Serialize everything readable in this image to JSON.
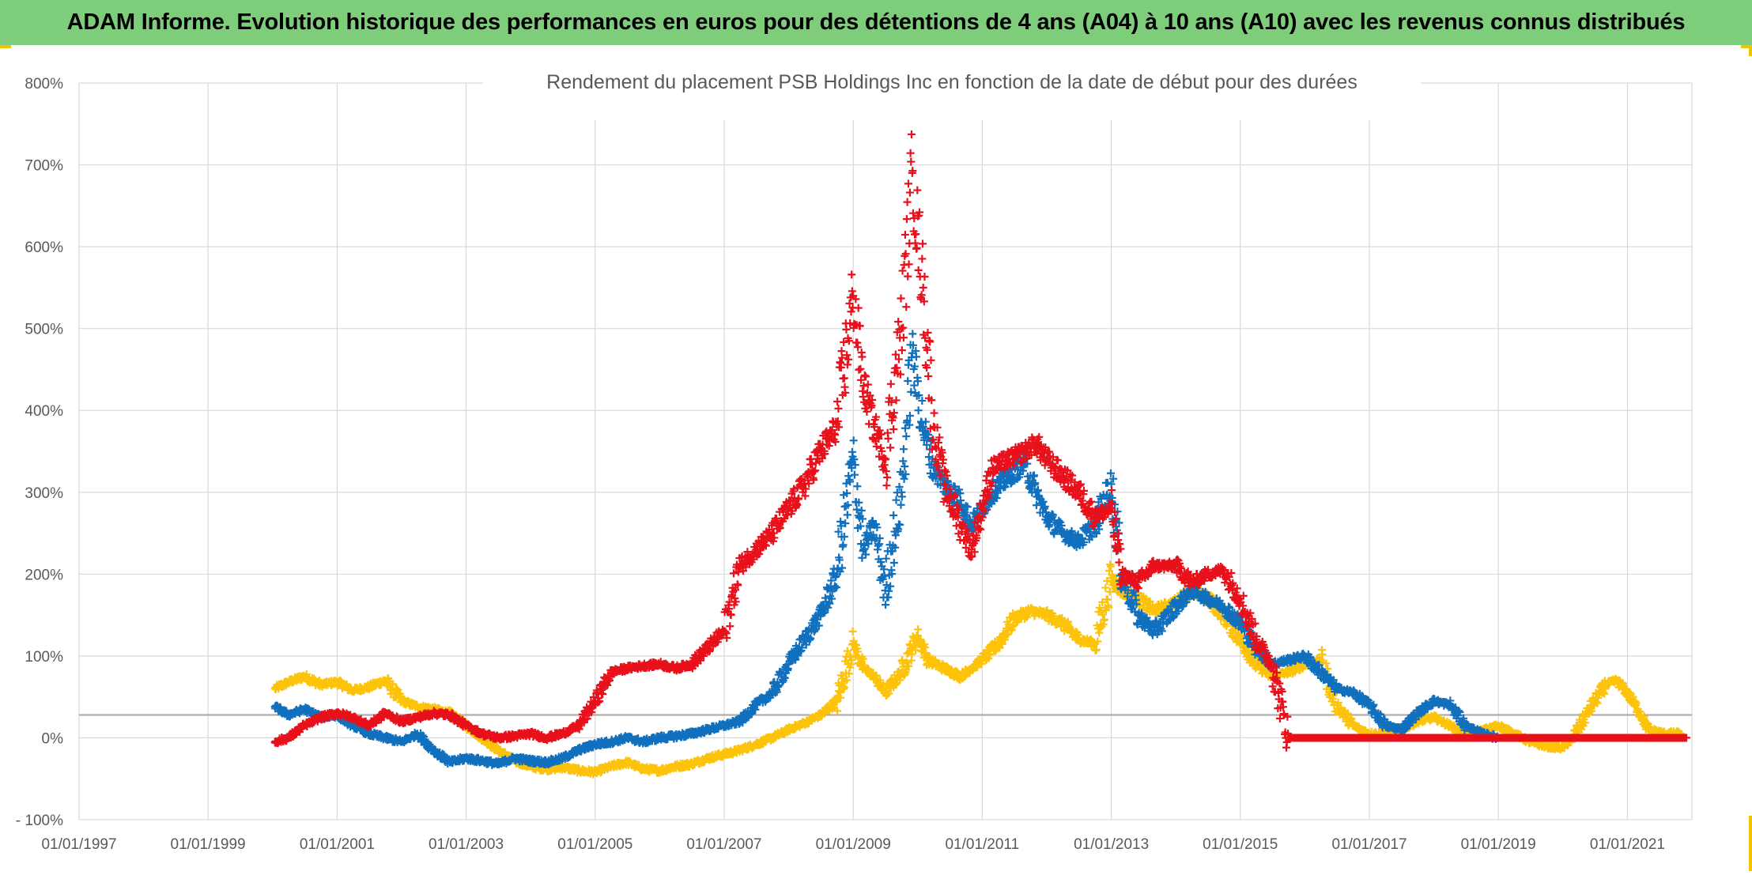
{
  "banner": {
    "title": "ADAM Informe. Evolution historique des performances en euros pour des détentions de 4 ans (A04) à 10 ans (A10) avec les revenus connus distribués"
  },
  "colors": {
    "banner_bg": "#7dcd7b",
    "corner_accent": "#f2c200",
    "series_red": "#e8101a",
    "series_blue": "#1170be",
    "series_yellow": "#fcc30a",
    "grid": "#d9d9d9",
    "reference_line": "#a6a6a6"
  },
  "chart_data": {
    "type": "scatter",
    "title": "Rendement du placement PSB Holdings Inc en fonction de la date de début pour des durées",
    "xlabel": "",
    "ylabel": "",
    "x_axis": {
      "type": "date",
      "range": [
        "1997-01-01",
        "2022-01-01"
      ],
      "ticks": [
        "1997-01-01",
        "1999-01-01",
        "2001-01-01",
        "2003-01-01",
        "2005-01-01",
        "2007-01-01",
        "2009-01-01",
        "2011-01-01",
        "2013-01-01",
        "2015-01-01",
        "2017-01-01",
        "2019-01-01",
        "2021-01-01"
      ],
      "tick_labels": [
        "01/01/1997",
        "01/01/1999",
        "01/01/2001",
        "01/01/2003",
        "01/01/2005",
        "01/01/2007",
        "01/01/2009",
        "01/01/2011",
        "01/01/2013",
        "01/01/2015",
        "01/01/2017",
        "01/01/2019",
        "01/01/2021"
      ]
    },
    "y_axis": {
      "range": [
        -100,
        800
      ],
      "ticks": [
        -100,
        0,
        100,
        200,
        300,
        400,
        500,
        600,
        700,
        800
      ],
      "tick_labels": [
        "- 100%",
        "0%",
        "100%",
        "200%",
        "300%",
        "400%",
        "500%",
        "600%",
        "700%",
        "800%"
      ]
    },
    "reference_line_y": 28,
    "grid": true,
    "legend": "none",
    "marker": "+",
    "series": [
      {
        "color": "#fcc30a",
        "points": [
          [
            "2000-01-15",
            60
          ],
          [
            "2000-04-01",
            68
          ],
          [
            "2000-07-01",
            75
          ],
          [
            "2000-10-01",
            65
          ],
          [
            "2001-01-01",
            68
          ],
          [
            "2001-04-01",
            58
          ],
          [
            "2001-07-01",
            62
          ],
          [
            "2001-10-01",
            70
          ],
          [
            "2002-01-01",
            45
          ],
          [
            "2002-04-01",
            38
          ],
          [
            "2002-07-01",
            35
          ],
          [
            "2002-10-01",
            30
          ],
          [
            "2003-01-01",
            15
          ],
          [
            "2003-04-01",
            0
          ],
          [
            "2003-07-01",
            -15
          ],
          [
            "2003-10-01",
            -28
          ],
          [
            "2004-01-01",
            -35
          ],
          [
            "2004-04-01",
            -38
          ],
          [
            "2004-07-01",
            -36
          ],
          [
            "2004-10-01",
            -40
          ],
          [
            "2005-01-01",
            -42
          ],
          [
            "2005-04-01",
            -35
          ],
          [
            "2005-07-01",
            -30
          ],
          [
            "2005-10-01",
            -38
          ],
          [
            "2006-01-01",
            -40
          ],
          [
            "2006-04-01",
            -35
          ],
          [
            "2006-07-01",
            -32
          ],
          [
            "2006-10-01",
            -25
          ],
          [
            "2007-01-01",
            -20
          ],
          [
            "2007-04-01",
            -15
          ],
          [
            "2007-07-01",
            -8
          ],
          [
            "2007-10-01",
            0
          ],
          [
            "2008-01-01",
            10
          ],
          [
            "2008-04-01",
            18
          ],
          [
            "2008-07-01",
            28
          ],
          [
            "2008-10-01",
            45
          ],
          [
            "2009-01-01",
            115
          ],
          [
            "2009-03-01",
            85
          ],
          [
            "2009-05-01",
            75
          ],
          [
            "2009-07-01",
            55
          ],
          [
            "2009-10-01",
            80
          ],
          [
            "2010-01-01",
            125
          ],
          [
            "2010-03-01",
            95
          ],
          [
            "2010-06-01",
            85
          ],
          [
            "2010-09-01",
            75
          ],
          [
            "2010-11-01",
            85
          ],
          [
            "2011-01-01",
            95
          ],
          [
            "2011-04-01",
            115
          ],
          [
            "2011-07-01",
            145
          ],
          [
            "2011-10-01",
            155
          ],
          [
            "2012-01-01",
            150
          ],
          [
            "2012-04-01",
            140
          ],
          [
            "2012-07-01",
            120
          ],
          [
            "2012-10-01",
            115
          ],
          [
            "2013-01-01",
            195
          ],
          [
            "2013-03-01",
            180
          ],
          [
            "2013-06-01",
            170
          ],
          [
            "2013-09-01",
            155
          ],
          [
            "2014-01-01",
            165
          ],
          [
            "2014-04-01",
            180
          ],
          [
            "2014-07-01",
            170
          ],
          [
            "2014-10-01",
            150
          ],
          [
            "2015-01-01",
            120
          ],
          [
            "2015-04-01",
            90
          ],
          [
            "2015-07-01",
            75
          ],
          [
            "2015-10-01",
            80
          ],
          [
            "2016-01-01",
            90
          ],
          [
            "2016-04-01",
            95
          ],
          [
            "2016-07-01",
            40
          ],
          [
            "2016-10-01",
            15
          ],
          [
            "2017-01-01",
            5
          ],
          [
            "2017-04-01",
            5
          ],
          [
            "2017-07-01",
            10
          ],
          [
            "2017-10-01",
            20
          ],
          [
            "2018-01-01",
            25
          ],
          [
            "2018-04-01",
            15
          ],
          [
            "2018-07-01",
            5
          ],
          [
            "2018-10-01",
            8
          ],
          [
            "2019-01-01",
            15
          ],
          [
            "2019-04-01",
            5
          ],
          [
            "2019-07-01",
            -5
          ],
          [
            "2019-10-01",
            -10
          ],
          [
            "2020-01-01",
            -12
          ],
          [
            "2020-03-01",
            0
          ],
          [
            "2020-06-01",
            35
          ],
          [
            "2020-09-01",
            65
          ],
          [
            "2020-11-01",
            70
          ],
          [
            "2021-01-01",
            55
          ],
          [
            "2021-03-01",
            35
          ],
          [
            "2021-05-01",
            10
          ],
          [
            "2021-08-01",
            5
          ],
          [
            "2021-11-01",
            5
          ]
        ]
      },
      {
        "color": "#1170be",
        "points": [
          [
            "2000-01-15",
            38
          ],
          [
            "2000-04-01",
            28
          ],
          [
            "2000-07-01",
            35
          ],
          [
            "2000-10-01",
            25
          ],
          [
            "2001-01-01",
            28
          ],
          [
            "2001-04-01",
            15
          ],
          [
            "2001-07-01",
            5
          ],
          [
            "2001-10-01",
            0
          ],
          [
            "2002-01-01",
            -5
          ],
          [
            "2002-04-01",
            5
          ],
          [
            "2002-07-01",
            -15
          ],
          [
            "2002-10-01",
            -30
          ],
          [
            "2003-01-01",
            -25
          ],
          [
            "2003-04-01",
            -28
          ],
          [
            "2003-07-01",
            -32
          ],
          [
            "2003-10-01",
            -25
          ],
          [
            "2004-01-01",
            -28
          ],
          [
            "2004-04-01",
            -30
          ],
          [
            "2004-07-01",
            -25
          ],
          [
            "2004-10-01",
            -15
          ],
          [
            "2005-01-01",
            -8
          ],
          [
            "2005-04-01",
            -5
          ],
          [
            "2005-07-01",
            0
          ],
          [
            "2005-10-01",
            -5
          ],
          [
            "2006-01-01",
            0
          ],
          [
            "2006-04-01",
            2
          ],
          [
            "2006-07-01",
            5
          ],
          [
            "2006-10-01",
            10
          ],
          [
            "2007-01-01",
            15
          ],
          [
            "2007-04-01",
            20
          ],
          [
            "2007-07-01",
            40
          ],
          [
            "2007-10-01",
            55
          ],
          [
            "2008-01-01",
            90
          ],
          [
            "2008-04-01",
            120
          ],
          [
            "2008-07-01",
            150
          ],
          [
            "2008-10-01",
            200
          ],
          [
            "2009-01-01",
            340
          ],
          [
            "2009-03-01",
            230
          ],
          [
            "2009-05-01",
            260
          ],
          [
            "2009-07-01",
            180
          ],
          [
            "2009-10-01",
            300
          ],
          [
            "2009-12-01",
            470
          ],
          [
            "2010-02-01",
            380
          ],
          [
            "2010-04-01",
            330
          ],
          [
            "2010-06-01",
            310
          ],
          [
            "2010-09-01",
            290
          ],
          [
            "2010-11-01",
            260
          ],
          [
            "2011-01-01",
            280
          ],
          [
            "2011-03-01",
            300
          ],
          [
            "2011-06-01",
            320
          ],
          [
            "2011-09-01",
            335
          ],
          [
            "2011-11-01",
            300
          ],
          [
            "2012-01-01",
            270
          ],
          [
            "2012-04-01",
            250
          ],
          [
            "2012-07-01",
            240
          ],
          [
            "2012-10-01",
            260
          ],
          [
            "2013-01-01",
            310
          ],
          [
            "2013-03-01",
            200
          ],
          [
            "2013-06-01",
            150
          ],
          [
            "2013-09-01",
            130
          ],
          [
            "2014-01-01",
            160
          ],
          [
            "2014-04-01",
            180
          ],
          [
            "2014-07-01",
            170
          ],
          [
            "2014-10-01",
            160
          ],
          [
            "2015-01-01",
            140
          ],
          [
            "2015-04-01",
            110
          ],
          [
            "2015-07-01",
            90
          ],
          [
            "2015-10-01",
            95
          ],
          [
            "2016-01-01",
            100
          ],
          [
            "2016-04-01",
            80
          ],
          [
            "2016-07-01",
            60
          ],
          [
            "2016-10-01",
            55
          ],
          [
            "2017-01-01",
            40
          ],
          [
            "2017-04-01",
            15
          ],
          [
            "2017-07-01",
            10
          ],
          [
            "2017-10-01",
            30
          ],
          [
            "2018-01-01",
            45
          ],
          [
            "2018-04-01",
            40
          ],
          [
            "2018-07-01",
            15
          ],
          [
            "2018-10-01",
            5
          ],
          [
            "2019-01-01",
            0
          ]
        ]
      },
      {
        "color": "#e8101a",
        "points": [
          [
            "2000-01-15",
            -5
          ],
          [
            "2000-04-01",
            0
          ],
          [
            "2000-07-01",
            15
          ],
          [
            "2000-10-01",
            25
          ],
          [
            "2001-01-01",
            30
          ],
          [
            "2001-04-01",
            25
          ],
          [
            "2001-07-01",
            15
          ],
          [
            "2001-10-01",
            30
          ],
          [
            "2002-01-01",
            20
          ],
          [
            "2002-04-01",
            25
          ],
          [
            "2002-07-01",
            30
          ],
          [
            "2002-10-01",
            28
          ],
          [
            "2003-01-01",
            15
          ],
          [
            "2003-04-01",
            5
          ],
          [
            "2003-07-01",
            0
          ],
          [
            "2003-10-01",
            2
          ],
          [
            "2004-01-01",
            5
          ],
          [
            "2004-04-01",
            0
          ],
          [
            "2004-07-01",
            5
          ],
          [
            "2004-10-01",
            15
          ],
          [
            "2005-01-01",
            45
          ],
          [
            "2005-04-01",
            80
          ],
          [
            "2005-07-01",
            85
          ],
          [
            "2005-10-01",
            88
          ],
          [
            "2006-01-01",
            90
          ],
          [
            "2006-04-01",
            85
          ],
          [
            "2006-07-01",
            90
          ],
          [
            "2006-10-01",
            110
          ],
          [
            "2007-01-01",
            130
          ],
          [
            "2007-04-01",
            210
          ],
          [
            "2007-07-01",
            230
          ],
          [
            "2007-10-01",
            250
          ],
          [
            "2008-01-01",
            280
          ],
          [
            "2008-04-01",
            310
          ],
          [
            "2008-07-01",
            350
          ],
          [
            "2008-10-01",
            380
          ],
          [
            "2009-01-01",
            540
          ],
          [
            "2009-03-01",
            430
          ],
          [
            "2009-05-01",
            380
          ],
          [
            "2009-07-01",
            340
          ],
          [
            "2009-10-01",
            500
          ],
          [
            "2009-12-01",
            690
          ],
          [
            "2010-02-01",
            550
          ],
          [
            "2010-04-01",
            380
          ],
          [
            "2010-06-01",
            310
          ],
          [
            "2010-09-01",
            260
          ],
          [
            "2010-11-01",
            230
          ],
          [
            "2011-01-01",
            280
          ],
          [
            "2011-03-01",
            330
          ],
          [
            "2011-06-01",
            340
          ],
          [
            "2011-09-01",
            350
          ],
          [
            "2011-11-01",
            360
          ],
          [
            "2012-01-01",
            340
          ],
          [
            "2012-04-01",
            320
          ],
          [
            "2012-07-01",
            300
          ],
          [
            "2012-10-01",
            270
          ],
          [
            "2013-01-01",
            280
          ],
          [
            "2013-03-01",
            200
          ],
          [
            "2013-06-01",
            190
          ],
          [
            "2013-09-01",
            210
          ],
          [
            "2014-01-01",
            210
          ],
          [
            "2014-04-01",
            190
          ],
          [
            "2014-07-01",
            200
          ],
          [
            "2014-10-01",
            205
          ],
          [
            "2015-01-01",
            170
          ],
          [
            "2015-04-01",
            120
          ],
          [
            "2015-07-01",
            90
          ],
          [
            "2015-10-01",
            0
          ],
          [
            "2016-06-01",
            0
          ],
          [
            "2017-01-01",
            0
          ],
          [
            "2017-07-01",
            0
          ],
          [
            "2018-01-01",
            0
          ],
          [
            "2018-07-01",
            0
          ],
          [
            "2019-01-01",
            0
          ],
          [
            "2019-07-01",
            0
          ],
          [
            "2020-01-01",
            0
          ],
          [
            "2020-07-01",
            0
          ],
          [
            "2021-01-01",
            0
          ],
          [
            "2021-07-01",
            0
          ],
          [
            "2021-12-01",
            0
          ]
        ]
      }
    ]
  }
}
